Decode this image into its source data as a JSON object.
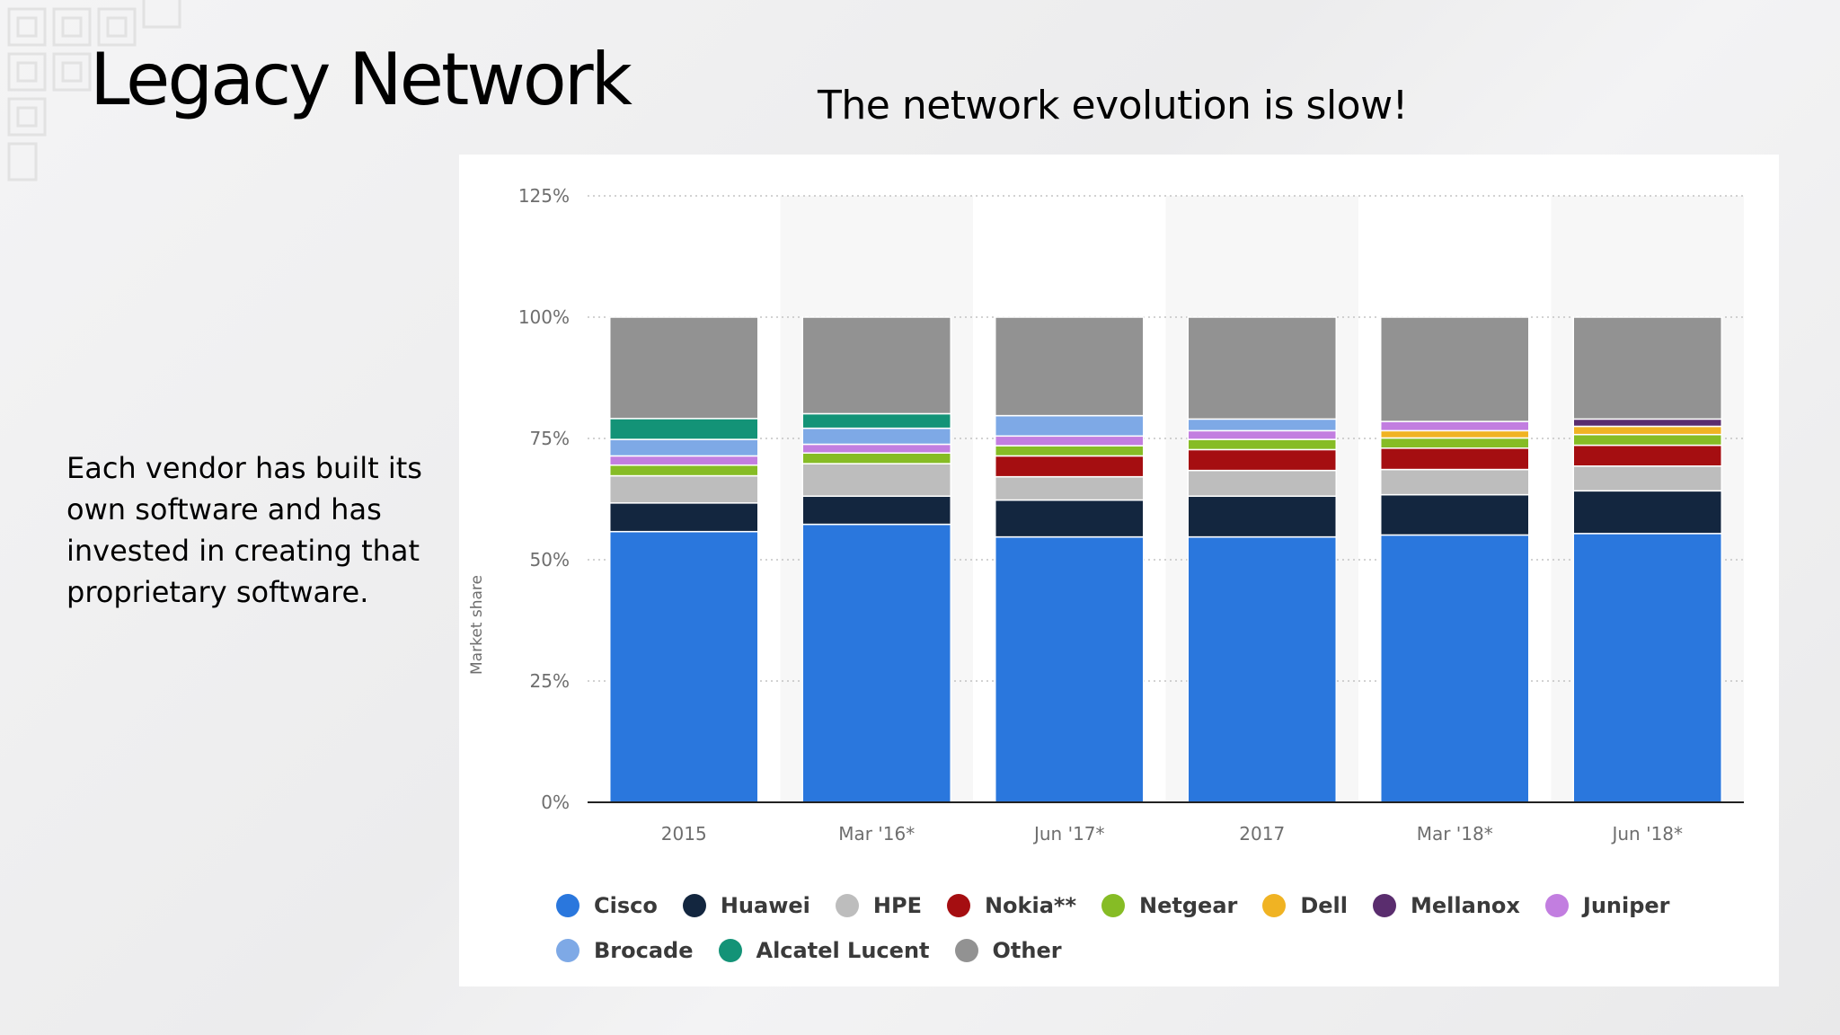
{
  "slide": {
    "title": "Legacy Network",
    "subtitle": "The network evolution is slow!",
    "body": "Each vendor has built its own software and has invested in creating that proprietary software."
  },
  "chart_data": {
    "type": "bar",
    "stacked": true,
    "title": "",
    "xlabel": "",
    "ylabel": "Market share",
    "ylim": [
      0,
      125
    ],
    "yticks": [
      "0%",
      "25%",
      "50%",
      "75%",
      "100%",
      "125%"
    ],
    "ytick_values": [
      0,
      25,
      50,
      75,
      100,
      125
    ],
    "grid": true,
    "legend_position": "bottom",
    "categories": [
      "2015",
      "Mar '16*",
      "Jun '17*",
      "2017",
      "Mar '18*",
      "Jun '18*"
    ],
    "series": [
      {
        "name": "Cisco",
        "color": "#2a77dd",
        "values": [
          55.8,
          57.3,
          54.7,
          54.7,
          55.1,
          55.4
        ]
      },
      {
        "name": "Huawei",
        "color": "#13263f",
        "values": [
          5.9,
          5.8,
          7.6,
          8.4,
          8.3,
          8.8
        ]
      },
      {
        "name": "HPE",
        "color": "#bdbdbd",
        "values": [
          5.6,
          6.7,
          4.8,
          5.3,
          5.2,
          5.1
        ]
      },
      {
        "name": "Nokia**",
        "color": "#a50e11",
        "values": [
          0,
          0,
          4.3,
          4.3,
          4.4,
          4.3
        ]
      },
      {
        "name": "Netgear",
        "color": "#86bc25",
        "values": [
          2.2,
          2.2,
          2.1,
          2.1,
          2.1,
          2.2
        ]
      },
      {
        "name": "Dell",
        "color": "#f0b323",
        "values": [
          0,
          0,
          0,
          0,
          1.5,
          1.7
        ]
      },
      {
        "name": "Mellanox",
        "color": "#5a2d6e",
        "values": [
          0,
          0,
          0,
          0,
          0,
          1.5
        ]
      },
      {
        "name": "Juniper",
        "color": "#c27ee0",
        "values": [
          1.9,
          1.8,
          2.0,
          1.8,
          1.9,
          0
        ]
      },
      {
        "name": "Brocade",
        "color": "#7ea9e6",
        "values": [
          3.4,
          3.3,
          4.2,
          2.4,
          0,
          0
        ]
      },
      {
        "name": "Alcatel Lucent",
        "color": "#139377",
        "values": [
          4.3,
          3.0,
          0,
          0,
          0,
          0
        ]
      },
      {
        "name": "Other",
        "color": "#929292",
        "values": [
          20.9,
          19.9,
          20.3,
          21.0,
          21.5,
          21.0
        ]
      }
    ]
  }
}
